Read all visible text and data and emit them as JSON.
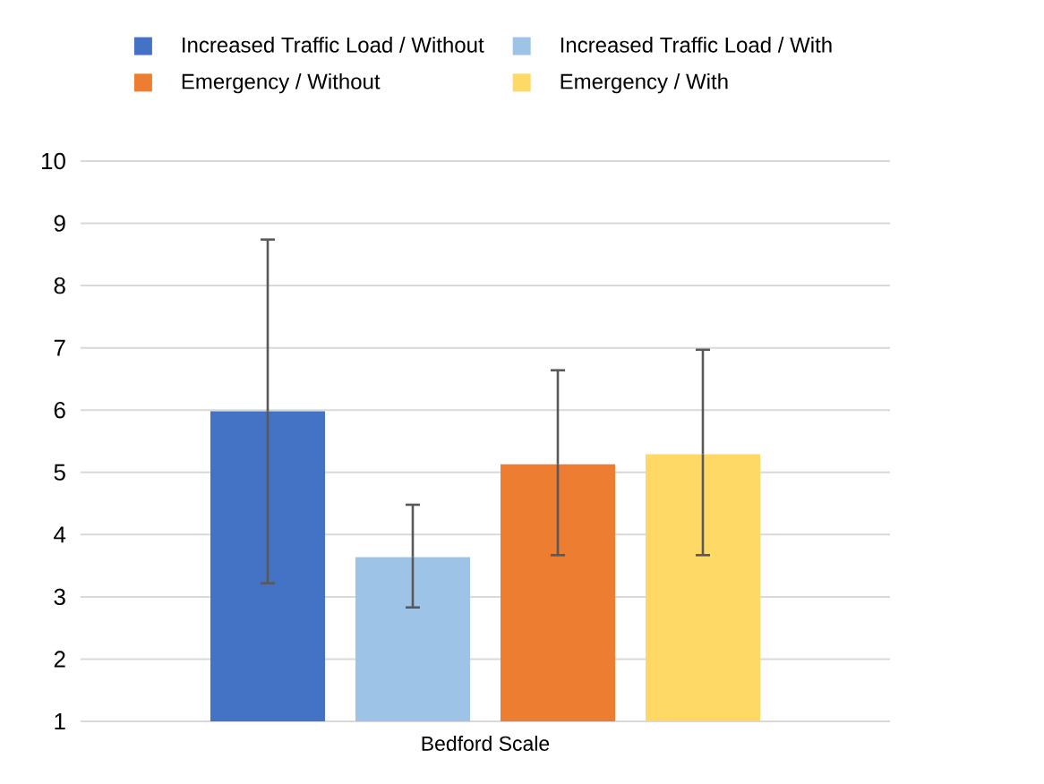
{
  "chart_data": {
    "type": "bar",
    "categories": [
      "Bedford Scale"
    ],
    "series": [
      {
        "name": "Increased Traffic Load / Without",
        "color": "#4472c4",
        "values": [
          5.98
        ],
        "errors": [
          [
            3.22,
            8.74
          ]
        ]
      },
      {
        "name": "Increased Traffic Load / With",
        "color": "#9dc3e6",
        "values": [
          3.64
        ],
        "errors": [
          [
            2.83,
            4.48
          ]
        ]
      },
      {
        "name": "Emergency / Without",
        "color": "#ed7d31",
        "values": [
          5.13
        ],
        "errors": [
          [
            3.67,
            6.64
          ]
        ]
      },
      {
        "name": "Emergency / With",
        "color": "#ffd966",
        "values": [
          5.29
        ],
        "errors": [
          [
            3.67,
            6.97
          ]
        ]
      }
    ],
    "ylim": [
      1,
      10
    ],
    "yticks": [
      1,
      2,
      3,
      4,
      5,
      6,
      7,
      8,
      9,
      10
    ],
    "grid": "y",
    "legend": "top"
  }
}
